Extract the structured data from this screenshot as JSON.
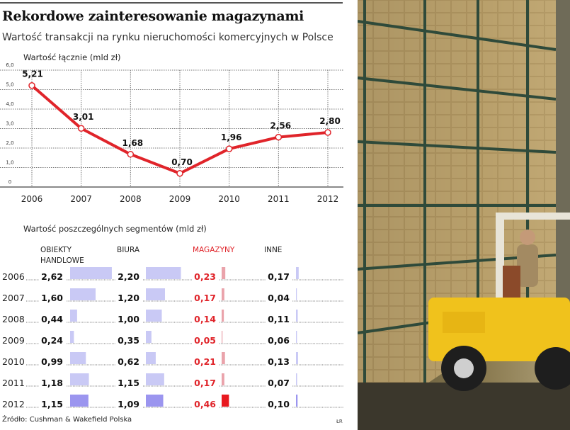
{
  "title": "Rekordowe zainteresowanie magazynami",
  "subtitle": "Wartość transakcji na rynku nieruchomości komercyjnych w Polsce",
  "source": "Źródło: Cushman & Wakefield Polska",
  "credit": "ŁR",
  "colors": {
    "line": "#e0242a",
    "bar": "#c9c9f5",
    "bar_highlight": "#9b95ef",
    "mag_bar": "#eaa3ab",
    "mag_highlight": "#e8191f",
    "mag_text": "#e0242a"
  },
  "photo": {
    "description_icon": "warehouse-forklift-photo"
  },
  "chart_data": [
    {
      "type": "line",
      "title": "Wartość łącznie (mld zł)",
      "x": [
        "2006",
        "2007",
        "2008",
        "2009",
        "2010",
        "2011",
        "2012"
      ],
      "values": [
        5.21,
        3.01,
        1.68,
        0.7,
        1.96,
        2.56,
        2.8
      ],
      "labels": [
        "5,21",
        "3,01",
        "1,68",
        "0,70",
        "1,96",
        "2,56",
        "2,80"
      ],
      "yticks": [
        "0",
        "1,0",
        "2,0",
        "3,0",
        "4,0",
        "5,0",
        "6,0"
      ],
      "ylim": [
        0,
        6
      ],
      "grid": true
    },
    {
      "type": "table",
      "title": "Wartość poszczególnych segmentów (mld zł)",
      "columns": [
        "OBIEKTY HANDLOWE",
        "BIURA",
        "MAGAZYNY",
        "INNE"
      ],
      "rows": [
        {
          "year": "2006",
          "values": [
            2.62,
            2.2,
            0.23,
            0.17
          ],
          "labels": [
            "2,62",
            "2,20",
            "0,23",
            "0,17"
          ]
        },
        {
          "year": "2007",
          "values": [
            1.6,
            1.2,
            0.17,
            0.04
          ],
          "labels": [
            "1,60",
            "1,20",
            "0,17",
            "0,04"
          ]
        },
        {
          "year": "2008",
          "values": [
            0.44,
            1.0,
            0.14,
            0.11
          ],
          "labels": [
            "0,44",
            "1,00",
            "0,14",
            "0,11"
          ]
        },
        {
          "year": "2009",
          "values": [
            0.24,
            0.35,
            0.05,
            0.06
          ],
          "labels": [
            "0,24",
            "0,35",
            "0,05",
            "0,06"
          ]
        },
        {
          "year": "2010",
          "values": [
            0.99,
            0.62,
            0.21,
            0.13
          ],
          "labels": [
            "0,99",
            "0,62",
            "0,21",
            "0,13"
          ]
        },
        {
          "year": "2011",
          "values": [
            1.18,
            1.15,
            0.17,
            0.07
          ],
          "labels": [
            "1,18",
            "1,15",
            "0,17",
            "0,07"
          ]
        },
        {
          "year": "2012",
          "values": [
            1.15,
            1.09,
            0.46,
            0.1
          ],
          "labels": [
            "1,15",
            "1,09",
            "0,46",
            "0,10"
          ]
        }
      ]
    }
  ]
}
